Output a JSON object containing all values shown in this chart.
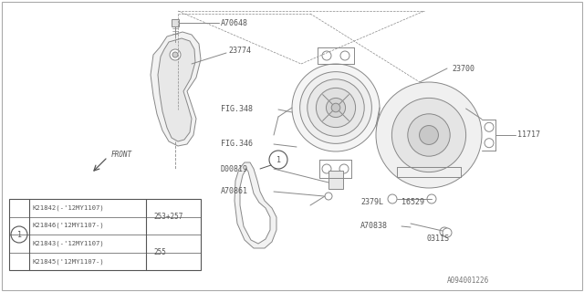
{
  "bg_color": "#ffffff",
  "line_color": "#888888",
  "text_color": "#555555",
  "figsize": [
    6.4,
    3.2
  ],
  "dpi": 100,
  "footer": "A094001226",
  "table": {
    "rows": [
      {
        "part": "K21842(-'12MY1107)",
        "ref": "253+257"
      },
      {
        "part": "K21846('12MY1107-)",
        "ref": "253+257"
      },
      {
        "part": "K21843(-'12MY1107)",
        "ref": "255"
      },
      {
        "part": "K21845('12MY1107-)",
        "ref": "255"
      }
    ]
  }
}
